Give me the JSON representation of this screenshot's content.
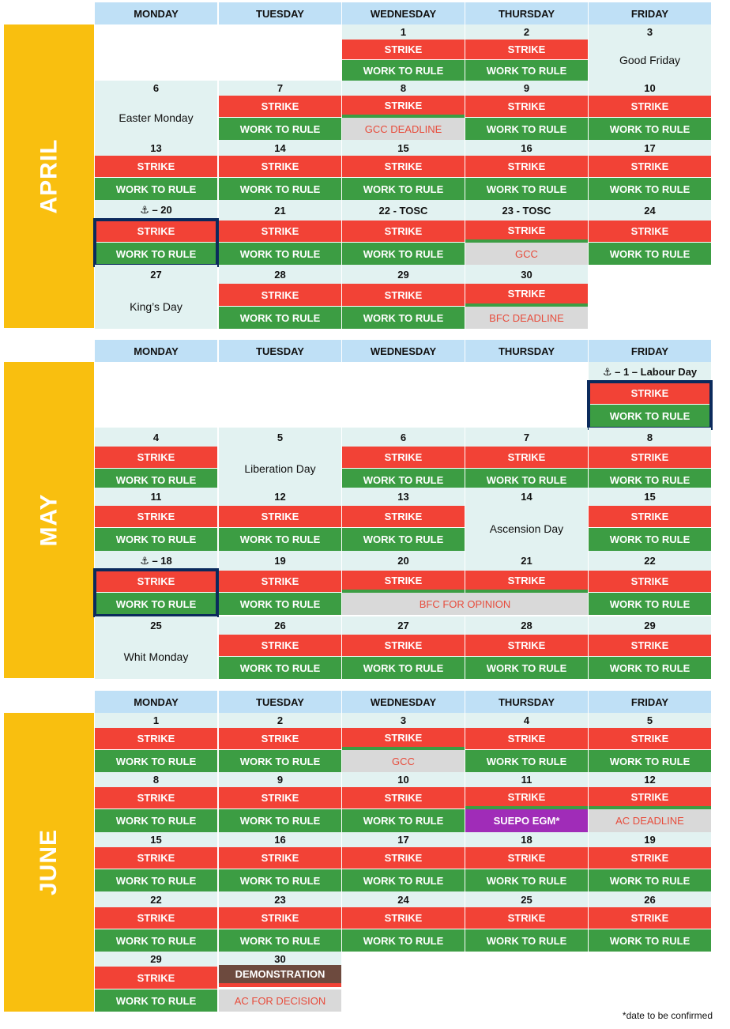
{
  "weekdays": [
    "MONDAY",
    "TUESDAY",
    "WEDNESDAY",
    "THURSDAY",
    "FRIDAY"
  ],
  "colors": {
    "strike": "#f24236",
    "work_to_rule": "#3c9d43",
    "deadline_bg": "#d9d9d9",
    "deadline_text": "#e74c3c",
    "month_bar": "#f9bf0f",
    "header_bg": "#bfe0f6",
    "date_bg": "#e2f2f1",
    "egm": "#a02cb8",
    "demonstration": "#6d4a3e",
    "highlight_border": "#0b2a5c"
  },
  "footnote": "*date to be confirmed",
  "months": [
    {
      "name": "APRIL",
      "weeks": [
        {
          "dates": [
            "",
            "",
            "1",
            "2",
            "3"
          ],
          "blocks": [
            [
              2,
              1,
              "strike",
              "STRIKE"
            ],
            [
              2,
              2,
              "rule",
              "WORK TO RULE"
            ],
            [
              3,
              1,
              "strike",
              "STRIKE"
            ],
            [
              3,
              2,
              "rule",
              "WORK TO RULE"
            ],
            [
              4,
              0,
              "holiday",
              "Good Friday"
            ]
          ]
        },
        {
          "dates": [
            "6",
            "7",
            "8",
            "9",
            "10"
          ],
          "blocks": [
            [
              0,
              0,
              "holiday",
              "Easter Monday"
            ],
            [
              1,
              1,
              "strike",
              "STRIKE"
            ],
            [
              1,
              2,
              "rule",
              "WORK TO RULE"
            ],
            [
              2,
              3,
              "strike",
              "STRIKE"
            ],
            [
              2,
              2,
              "grey",
              "GCC DEADLINE"
            ],
            [
              3,
              1,
              "strike",
              "STRIKE"
            ],
            [
              3,
              2,
              "rule",
              "WORK TO RULE"
            ],
            [
              4,
              1,
              "strike",
              "STRIKE"
            ],
            [
              4,
              2,
              "rule",
              "WORK TO RULE"
            ]
          ]
        },
        {
          "dates": [
            "13",
            "14",
            "15",
            "16",
            "17"
          ],
          "blocks": [
            [
              0,
              1,
              "strike",
              "STRIKE"
            ],
            [
              0,
              2,
              "rule",
              "WORK TO RULE"
            ],
            [
              1,
              1,
              "strike",
              "STRIKE"
            ],
            [
              1,
              2,
              "rule",
              "WORK TO RULE"
            ],
            [
              2,
              1,
              "strike",
              "STRIKE"
            ],
            [
              2,
              2,
              "rule",
              "WORK TO RULE"
            ],
            [
              3,
              1,
              "strike",
              "STRIKE"
            ],
            [
              3,
              2,
              "rule",
              "WORK TO RULE"
            ],
            [
              4,
              1,
              "strike",
              "STRIKE"
            ],
            [
              4,
              2,
              "rule",
              "WORK TO RULE"
            ]
          ]
        },
        {
          "dates": [
            "⚓ – 20",
            "21",
            "22 - TOSC",
            "23 - TOSC",
            "24"
          ],
          "outline": 0,
          "blocks": [
            [
              0,
              1,
              "strike",
              "STRIKE"
            ],
            [
              0,
              2,
              "rule",
              "WORK TO RULE"
            ],
            [
              1,
              1,
              "strike",
              "STRIKE"
            ],
            [
              1,
              2,
              "rule",
              "WORK TO RULE"
            ],
            [
              2,
              1,
              "strike",
              "STRIKE"
            ],
            [
              2,
              2,
              "rule",
              "WORK TO RULE"
            ],
            [
              3,
              3,
              "strike",
              "STRIKE"
            ],
            [
              3,
              2,
              "grey",
              "GCC"
            ],
            [
              4,
              1,
              "strike",
              "STRIKE"
            ],
            [
              4,
              2,
              "rule",
              "WORK TO RULE"
            ]
          ]
        },
        {
          "dates": [
            "27",
            "28",
            "29",
            "30",
            ""
          ],
          "blocks": [
            [
              0,
              0,
              "holiday",
              "King’s Day"
            ],
            [
              1,
              1,
              "strike",
              "STRIKE"
            ],
            [
              1,
              2,
              "rule",
              "WORK TO RULE"
            ],
            [
              2,
              1,
              "strike",
              "STRIKE"
            ],
            [
              2,
              2,
              "rule",
              "WORK TO RULE"
            ],
            [
              3,
              3,
              "strike",
              "STRIKE"
            ],
            [
              3,
              2,
              "grey",
              "BFC DEADLINE"
            ]
          ]
        }
      ]
    },
    {
      "name": "MAY",
      "weeks": [
        {
          "dates": [
            "",
            "",
            "",
            "",
            "⚓ – 1 – Labour Day"
          ],
          "outline": 4,
          "blocks": [
            [
              4,
              1,
              "strike",
              "STRIKE"
            ],
            [
              4,
              2,
              "rule",
              "WORK TO RULE"
            ]
          ]
        },
        {
          "dates": [
            "4",
            "5",
            "6",
            "7",
            "8"
          ],
          "blocks": [
            [
              0,
              1,
              "strike",
              "STRIKE"
            ],
            [
              0,
              2,
              "rule",
              "WORK TO RULE"
            ],
            [
              1,
              0,
              "holiday",
              "Liberation Day"
            ],
            [
              2,
              1,
              "strike",
              "STRIKE"
            ],
            [
              2,
              2,
              "rule",
              "WORK TO RULE"
            ],
            [
              3,
              1,
              "strike",
              "STRIKE"
            ],
            [
              3,
              2,
              "rule",
              "WORK TO RULE"
            ],
            [
              4,
              1,
              "strike",
              "STRIKE"
            ],
            [
              4,
              2,
              "rule",
              "WORK TO RULE"
            ]
          ]
        },
        {
          "dates": [
            "11",
            "12",
            "13",
            "14",
            "15"
          ],
          "blocks": [
            [
              0,
              1,
              "strike",
              "STRIKE"
            ],
            [
              0,
              2,
              "rule",
              "WORK TO RULE"
            ],
            [
              1,
              1,
              "strike",
              "STRIKE"
            ],
            [
              1,
              2,
              "rule",
              "WORK TO RULE"
            ],
            [
              2,
              1,
              "strike",
              "STRIKE"
            ],
            [
              2,
              2,
              "rule",
              "WORK TO RULE"
            ],
            [
              3,
              0,
              "holiday",
              "Ascension Day"
            ],
            [
              4,
              1,
              "strike",
              "STRIKE"
            ],
            [
              4,
              2,
              "rule",
              "WORK TO RULE"
            ]
          ]
        },
        {
          "dates": [
            "⚓ – 18",
            "19",
            "20",
            "21",
            "22"
          ],
          "outline": 0,
          "blocks": [
            [
              0,
              1,
              "strike",
              "STRIKE"
            ],
            [
              0,
              2,
              "rule",
              "WORK TO RULE"
            ],
            [
              1,
              1,
              "strike",
              "STRIKE"
            ],
            [
              1,
              2,
              "rule",
              "WORK TO RULE"
            ],
            [
              2,
              3,
              "strike",
              "STRIKE"
            ],
            [
              3,
              3,
              "strike",
              "STRIKE"
            ],
            [
              2,
              4,
              "grey",
              "BFC FOR OPINION"
            ],
            [
              4,
              1,
              "strike",
              "STRIKE"
            ],
            [
              4,
              2,
              "rule",
              "WORK TO RULE"
            ]
          ]
        },
        {
          "dates": [
            "25",
            "26",
            "27",
            "28",
            "29"
          ],
          "blocks": [
            [
              0,
              0,
              "holiday",
              "Whit Monday"
            ],
            [
              1,
              1,
              "strike",
              "STRIKE"
            ],
            [
              1,
              2,
              "rule",
              "WORK TO RULE"
            ],
            [
              2,
              1,
              "strike",
              "STRIKE"
            ],
            [
              2,
              2,
              "rule",
              "WORK TO RULE"
            ],
            [
              3,
              1,
              "strike",
              "STRIKE"
            ],
            [
              3,
              2,
              "rule",
              "WORK TO RULE"
            ],
            [
              4,
              1,
              "strike",
              "STRIKE"
            ],
            [
              4,
              2,
              "rule",
              "WORK TO RULE"
            ]
          ]
        }
      ]
    },
    {
      "name": "JUNE",
      "weeks": [
        {
          "dates": [
            "1",
            "2",
            "3",
            "4",
            "5"
          ],
          "blocks": [
            [
              0,
              1,
              "strike",
              "STRIKE"
            ],
            [
              0,
              2,
              "rule",
              "WORK TO RULE"
            ],
            [
              1,
              1,
              "strike",
              "STRIKE"
            ],
            [
              1,
              2,
              "rule",
              "WORK TO RULE"
            ],
            [
              2,
              3,
              "strike",
              "STRIKE"
            ],
            [
              2,
              2,
              "grey",
              "GCC"
            ],
            [
              3,
              1,
              "strike",
              "STRIKE"
            ],
            [
              3,
              2,
              "rule",
              "WORK TO RULE"
            ],
            [
              4,
              1,
              "strike",
              "STRIKE"
            ],
            [
              4,
              2,
              "rule",
              "WORK TO RULE"
            ]
          ]
        },
        {
          "dates": [
            "8",
            "9",
            "10",
            "11",
            "12"
          ],
          "blocks": [
            [
              0,
              1,
              "strike",
              "STRIKE"
            ],
            [
              0,
              2,
              "rule",
              "WORK TO RULE"
            ],
            [
              1,
              1,
              "strike",
              "STRIKE"
            ],
            [
              1,
              2,
              "rule",
              "WORK TO RULE"
            ],
            [
              2,
              1,
              "strike",
              "STRIKE"
            ],
            [
              2,
              2,
              "rule",
              "WORK TO RULE"
            ],
            [
              3,
              3,
              "strike",
              "STRIKE"
            ],
            [
              3,
              2,
              "purple",
              "SUEPO EGM*"
            ],
            [
              4,
              3,
              "strike",
              "STRIKE"
            ],
            [
              4,
              2,
              "grey",
              "AC DEADLINE"
            ]
          ]
        },
        {
          "dates": [
            "15",
            "16",
            "17",
            "18",
            "19"
          ],
          "blocks": [
            [
              0,
              1,
              "strike",
              "STRIKE"
            ],
            [
              0,
              2,
              "rule",
              "WORK TO RULE"
            ],
            [
              1,
              1,
              "strike",
              "STRIKE"
            ],
            [
              1,
              2,
              "rule",
              "WORK TO RULE"
            ],
            [
              2,
              1,
              "strike",
              "STRIKE"
            ],
            [
              2,
              2,
              "rule",
              "WORK TO RULE"
            ],
            [
              3,
              1,
              "strike",
              "STRIKE"
            ],
            [
              3,
              2,
              "rule",
              "WORK TO RULE"
            ],
            [
              4,
              1,
              "strike",
              "STRIKE"
            ],
            [
              4,
              2,
              "rule",
              "WORK TO RULE"
            ]
          ]
        },
        {
          "dates": [
            "22",
            "23",
            "24",
            "25",
            "26"
          ],
          "blocks": [
            [
              0,
              1,
              "strike",
              "STRIKE"
            ],
            [
              0,
              2,
              "rule",
              "WORK TO RULE"
            ],
            [
              1,
              1,
              "strike",
              "STRIKE"
            ],
            [
              1,
              2,
              "rule",
              "WORK TO RULE"
            ],
            [
              2,
              1,
              "strike",
              "STRIKE"
            ],
            [
              2,
              2,
              "rule",
              "WORK TO RULE"
            ],
            [
              3,
              1,
              "strike",
              "STRIKE"
            ],
            [
              3,
              2,
              "rule",
              "WORK TO RULE"
            ],
            [
              4,
              1,
              "strike",
              "STRIKE"
            ],
            [
              4,
              2,
              "rule",
              "WORK TO RULE"
            ]
          ]
        },
        {
          "dates": [
            "29",
            "30",
            "",
            "",
            ""
          ],
          "blocks": [
            [
              0,
              1,
              "strike",
              "STRIKE"
            ],
            [
              0,
              2,
              "rule",
              "WORK TO RULE"
            ],
            [
              1,
              5,
              "brown",
              "DEMONSTRATION"
            ],
            [
              1,
              2,
              "grey",
              "AC FOR DECISION"
            ]
          ]
        }
      ]
    }
  ]
}
